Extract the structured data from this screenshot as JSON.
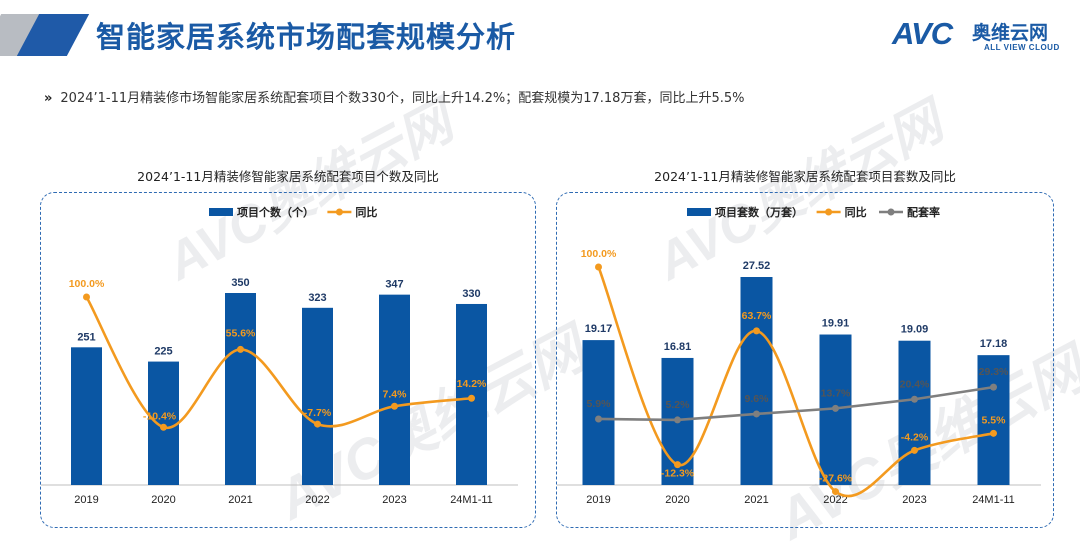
{
  "header": {
    "title": "智能家居系统市场配套规模分析",
    "logo_main": "AVC",
    "logo_cn": "奥维云网",
    "logo_en": "ALL VIEW CLOUD"
  },
  "summary": {
    "bullet_icon": "double-chevron-right-icon",
    "text": "2024’1-11月精装修市场智能家居系统配套项目个数330个，同比上升14.2%；配套规模为17.18万套，同比上升5.5%"
  },
  "colors": {
    "bar": "#0a56a3",
    "yoy": "#f39a1f",
    "rate": "#7f7f7f",
    "title": "#1a5aa5"
  },
  "watermark": {
    "main": "AVC奥维云网",
    "sub": "ALL VIEW CLOUD"
  },
  "chart_data": [
    {
      "type": "bar",
      "title": "2024’1-11月精装修智能家居系统配套项目个数及同比",
      "categories": [
        "2019",
        "2020",
        "2021",
        "2022",
        "2023",
        "24M1-11"
      ],
      "series": [
        {
          "name": "项目个数（个）",
          "type": "bar",
          "values": [
            251,
            225,
            350,
            323,
            347,
            330
          ],
          "labels": [
            "251",
            "225",
            "350",
            "323",
            "347",
            "330"
          ]
        },
        {
          "name": "同比",
          "type": "line",
          "values": [
            100.0,
            -10.4,
            55.6,
            -7.7,
            7.4,
            14.2
          ],
          "labels": [
            "100.0%",
            "-10.4%",
            "55.6%",
            "-7.7%",
            "7.4%",
            "14.2%"
          ]
        }
      ],
      "legend": "top-left",
      "grid": false
    },
    {
      "type": "bar",
      "title": "2024’1-11月精装修智能家居系统配套项目套数及同比",
      "categories": [
        "2019",
        "2020",
        "2021",
        "2022",
        "2023",
        "24M1-11"
      ],
      "series": [
        {
          "name": "项目套数（万套）",
          "type": "bar",
          "values": [
            19.17,
            16.81,
            27.52,
            19.91,
            19.09,
            17.18
          ],
          "labels": [
            "19.17",
            "16.81",
            "27.52",
            "19.91",
            "19.09",
            "17.18"
          ]
        },
        {
          "name": "同比",
          "type": "line",
          "values": [
            100.0,
            -12.3,
            63.7,
            -27.6,
            -4.2,
            5.5
          ],
          "labels": [
            "100.0%",
            "-12.3%",
            "63.7%",
            "-27.6%",
            "-4.2%",
            "5.5%"
          ]
        },
        {
          "name": "配套率",
          "type": "line",
          "values": [
            5.9,
            5.2,
            9.6,
            13.7,
            20.4,
            29.3
          ],
          "labels": [
            "5.9%",
            "5.2%",
            "9.6%",
            "13.7%",
            "20.4%",
            "29.3%"
          ]
        }
      ],
      "legend": "top-left",
      "grid": false
    }
  ]
}
